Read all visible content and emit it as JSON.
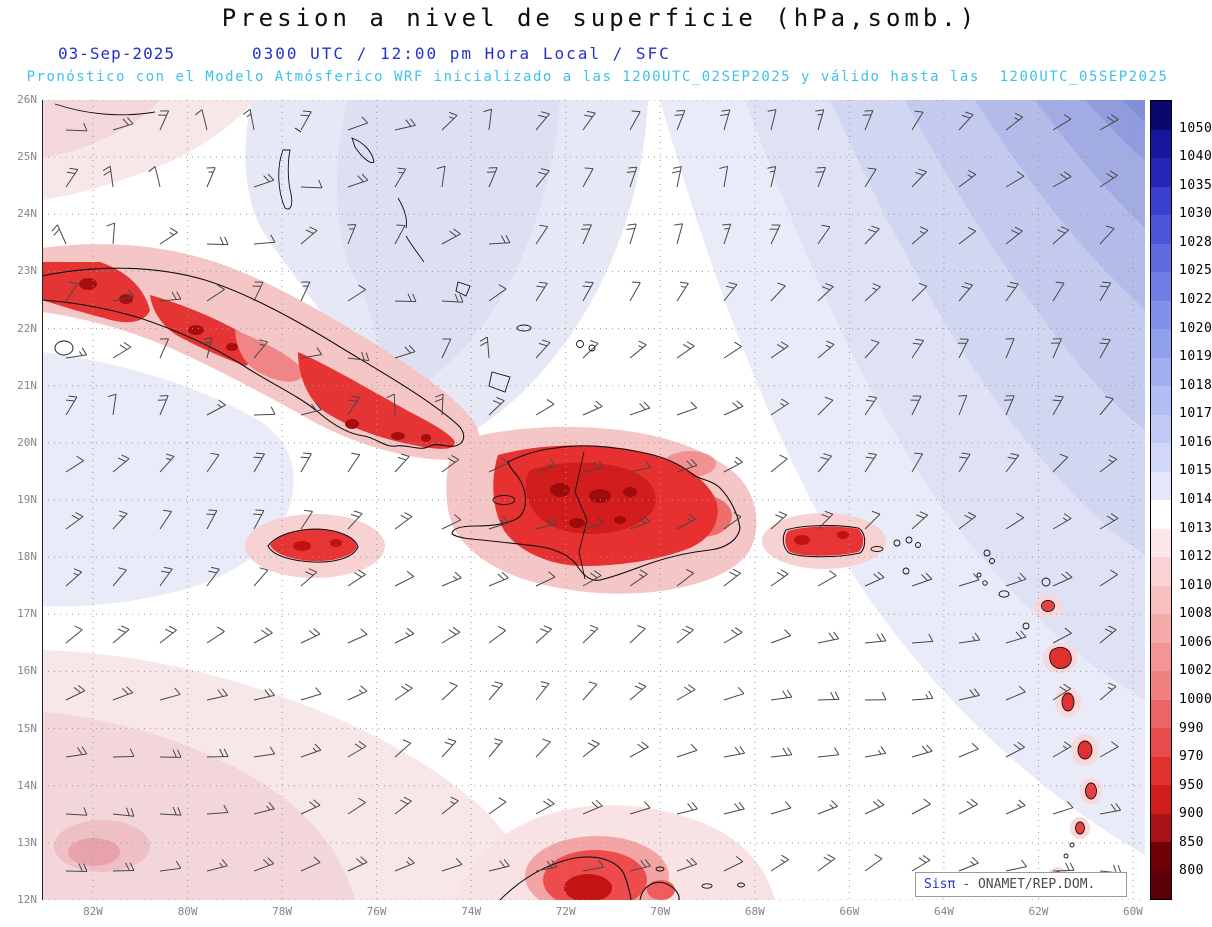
{
  "header": {
    "title": "Presion a nivel de superficie (hPa,somb.)",
    "date": "03-Sep-2025",
    "time": "0300 UTC / 12:00 pm Hora Local / SFC",
    "forecast": "Pronóstico con el Modelo Atmósferico WRF inicializado a las 1200UTC_02SEP2025 y válido hasta las  1200UTC_05SEP2025"
  },
  "axes": {
    "lat_labels": [
      "26N",
      "25N",
      "24N",
      "23N",
      "22N",
      "21N",
      "20N",
      "19N",
      "18N",
      "17N",
      "16N",
      "15N",
      "14N",
      "13N",
      "12N"
    ],
    "lon_labels": [
      "82W",
      "80W",
      "78W",
      "76W",
      "74W",
      "72W",
      "70W",
      "68W",
      "66W",
      "64W",
      "62W",
      "60W"
    ]
  },
  "colorbar": {
    "tick_labels": [
      "1050",
      "1040",
      "1035",
      "1030",
      "1028",
      "1025",
      "1022",
      "1020",
      "1019",
      "1018",
      "1017",
      "1016",
      "1015",
      "1014",
      "1013",
      "1012",
      "1010",
      "1008",
      "1006",
      "1002",
      "1000",
      "990",
      "970",
      "950",
      "900",
      "850",
      "800"
    ],
    "cell_colors": [
      "#07076e",
      "#16169e",
      "#2626b8",
      "#3a3fce",
      "#4c55d8",
      "#5e69de",
      "#707ce4",
      "#8190e9",
      "#91a0ed",
      "#a1aff0",
      "#b1bdf3",
      "#c1caf5",
      "#d1d7f8",
      "#e4e7fb",
      "#ffffff",
      "#fce8e8",
      "#fad4d4",
      "#f8c0c0",
      "#f6abab",
      "#f49595",
      "#f18080",
      "#ed6666",
      "#e84c4c",
      "#e13030",
      "#cf1c1c",
      "#a81216",
      "#6e0008",
      "#5a0006"
    ]
  },
  "watermark": {
    "brand": "Sisπ",
    "text": "- ONAMET/REP.DOM."
  },
  "colors": {
    "title_text": "#0d0d0d",
    "date_blue": "#2531cf",
    "forecast_cyan": "#3ec1ee",
    "grid": "#9a9aa2",
    "axis_label": "#85858d",
    "barb": "#474747",
    "high_pressure_blue": "#8290da",
    "low_pressure_red": "#d31d1d"
  }
}
